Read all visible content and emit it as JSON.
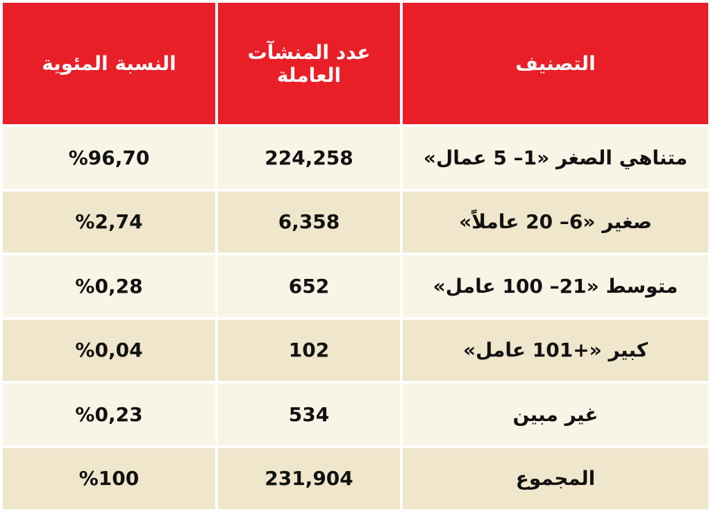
{
  "table": {
    "header": [
      "التصنيف",
      "عدد المنشآت العاملة",
      "النسبة المئوية"
    ],
    "rows": [
      [
        "متناهي الصغر «1– 5 عمال»",
        "224,258",
        "%96,70"
      ],
      [
        "صغير «6– 20 عاملاً»",
        "6,358",
        "%2,74"
      ],
      [
        "متوسط «21– 100 عامل»",
        "652",
        "%0,28"
      ],
      [
        "كبير «+101 عامل»",
        "102",
        "%0,04"
      ],
      [
        "غير مبين",
        "534",
        "%0,23"
      ],
      [
        "المجموع",
        "231,904",
        "%100"
      ]
    ]
  }
}
